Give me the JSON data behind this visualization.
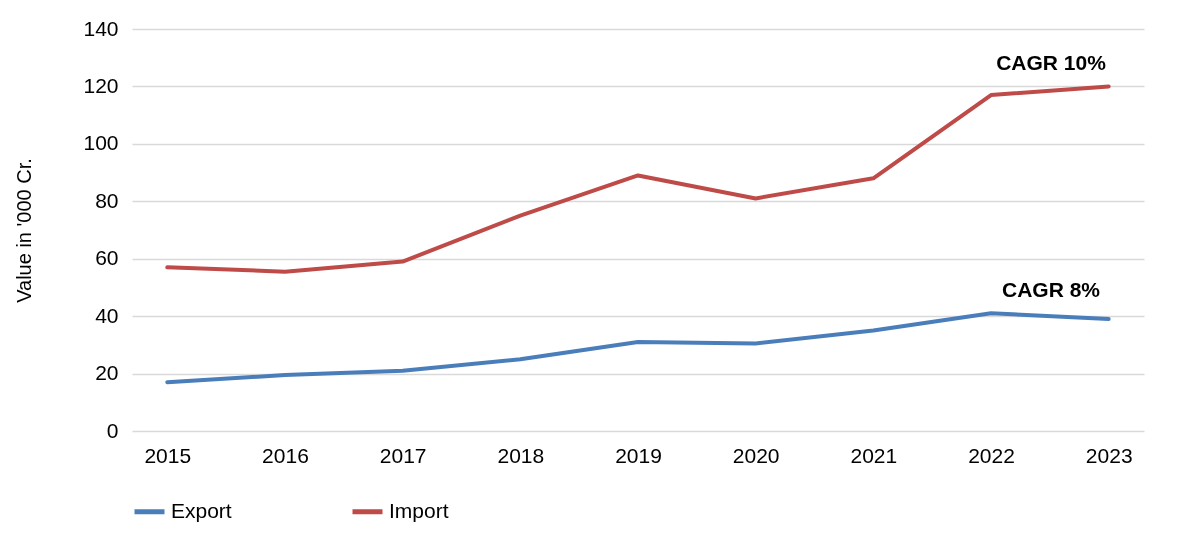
{
  "chart_data": {
    "type": "line",
    "ylabel": "Value in '000 Cr.",
    "categories": [
      "2015",
      "2016",
      "2017",
      "2018",
      "2019",
      "2020",
      "2021",
      "2022",
      "2023"
    ],
    "series": [
      {
        "name": "Export",
        "color": "#4a7ebb",
        "values": [
          17,
          19.5,
          21,
          25,
          31,
          30.5,
          35,
          41,
          39
        ]
      },
      {
        "name": "Import",
        "color": "#be4b48",
        "values": [
          57,
          55.5,
          59,
          75,
          89,
          81,
          88,
          117,
          120
        ]
      }
    ],
    "ylim": [
      0,
      140
    ],
    "yticks": [
      0,
      20,
      40,
      60,
      80,
      100,
      120,
      140
    ],
    "grid": "y",
    "legend": "bottom",
    "annotations": [
      "CAGR 10%",
      "CAGR 8%"
    ]
  }
}
